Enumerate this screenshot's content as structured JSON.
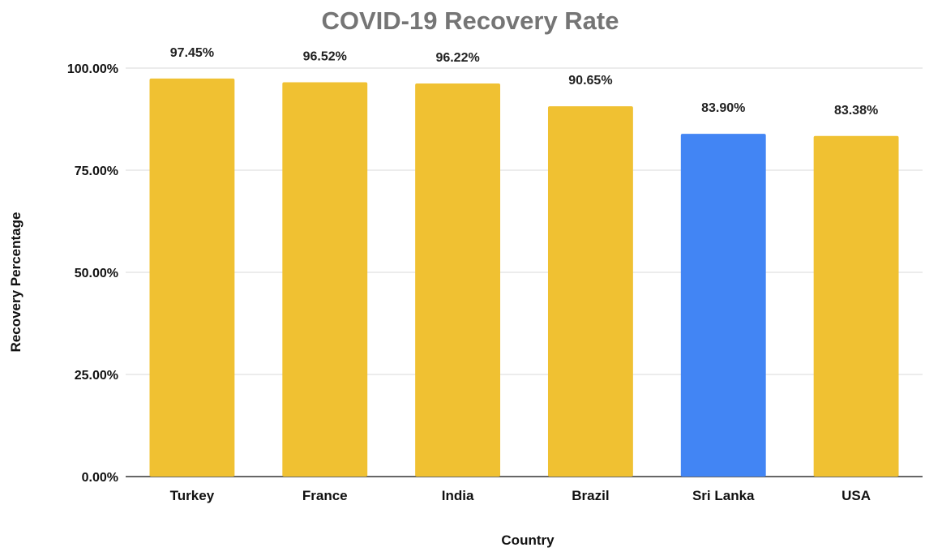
{
  "chart_data": {
    "type": "bar",
    "title": "COVID-19 Recovery Rate",
    "xlabel": "Country",
    "ylabel": "Recovery Percentage",
    "categories": [
      "Turkey",
      "France",
      "India",
      "Brazil",
      "Sri Lanka",
      "USA"
    ],
    "values": [
      97.45,
      96.52,
      96.22,
      90.65,
      83.9,
      83.38
    ],
    "data_labels": [
      "97.45%",
      "96.52%",
      "96.22%",
      "90.65%",
      "83.90%",
      "83.38%"
    ],
    "bar_colors": [
      "#f0c132",
      "#f0c132",
      "#f0c132",
      "#f0c132",
      "#4285f4",
      "#f0c132"
    ],
    "y_ticks": [
      0,
      25,
      50,
      75,
      100
    ],
    "y_tick_labels": [
      "0.00%",
      "25.00%",
      "50.00%",
      "75.00%",
      "100.00%"
    ],
    "ylim": [
      0,
      100
    ],
    "grid": true,
    "legend": "none"
  }
}
